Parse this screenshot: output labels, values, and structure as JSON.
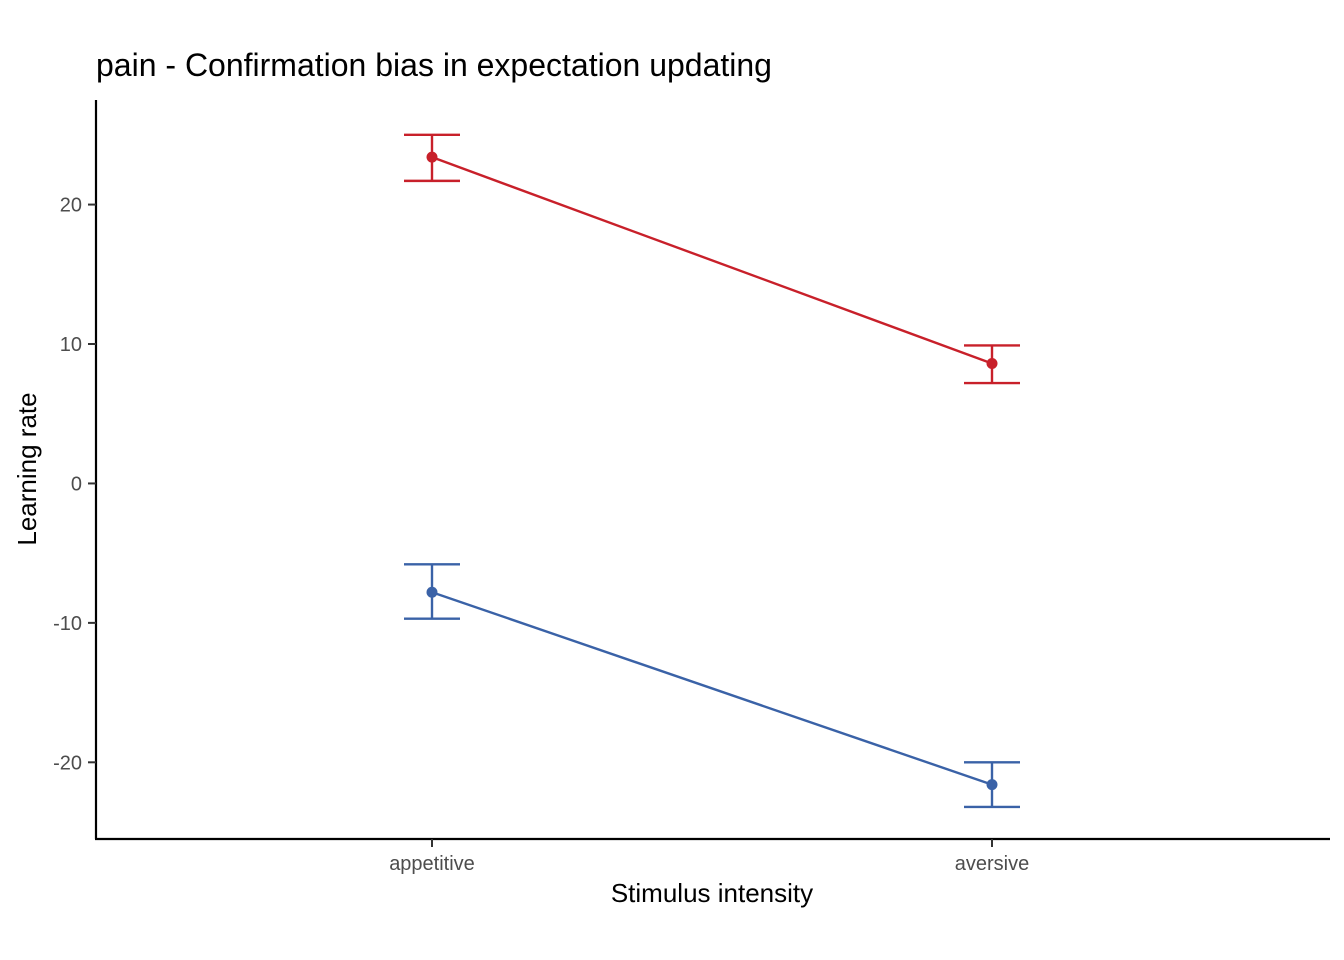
{
  "chart_data": {
    "type": "line",
    "title": "pain  - Confirmation bias in expectation updating",
    "xlabel": "Stimulus intensity",
    "ylabel": "Learning rate",
    "categories": [
      "appetitive",
      "aversive"
    ],
    "y_ticks": [
      -20,
      -10,
      0,
      10,
      20
    ],
    "ylim": [
      -25.5,
      27.5
    ],
    "grid": false,
    "legend": "none",
    "series": [
      {
        "color": "#c8202a",
        "values": [
          23.4,
          8.6
        ],
        "error_low": [
          21.7,
          7.2
        ],
        "error_high": [
          25.0,
          9.9
        ]
      },
      {
        "color": "#3a62a7",
        "values": [
          -7.8,
          -21.6
        ],
        "error_low": [
          -9.7,
          -23.2
        ],
        "error_high": [
          -5.8,
          -20.0
        ]
      }
    ]
  }
}
